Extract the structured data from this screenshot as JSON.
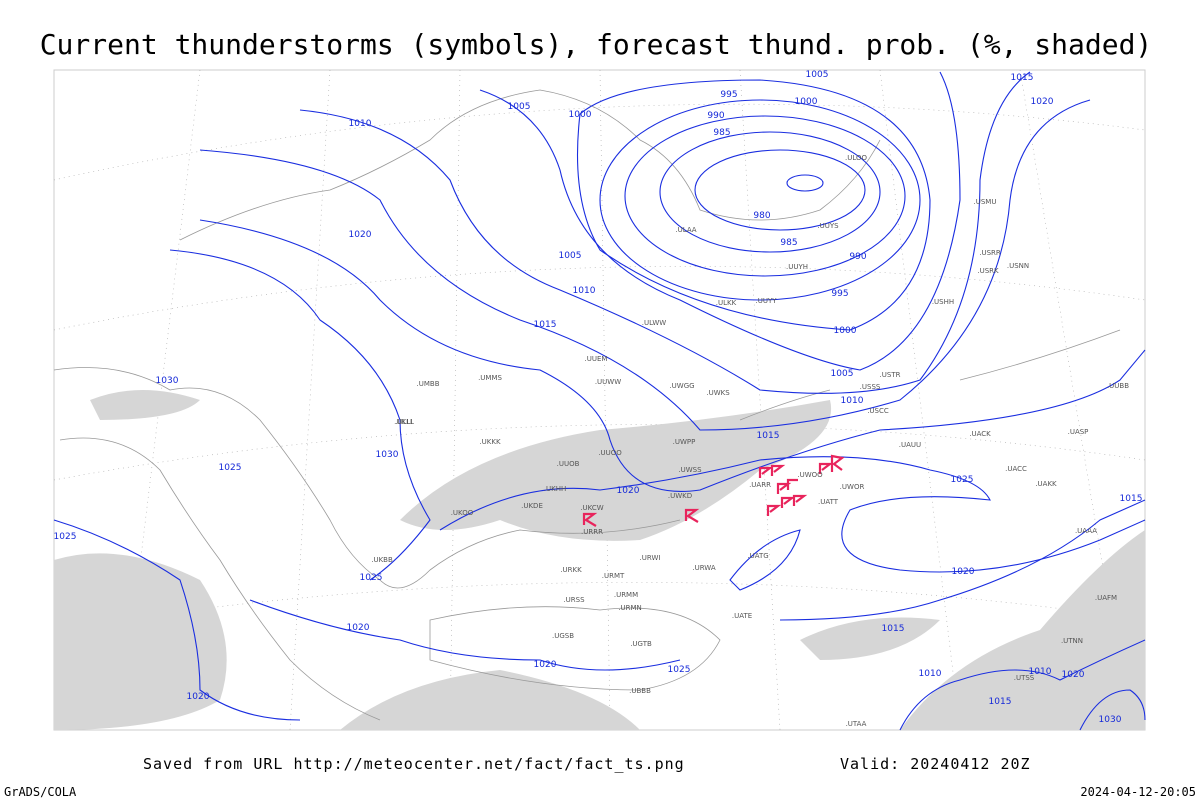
{
  "title": "Current thunderstorms (symbols), forecast thund. prob. (%, shaded)",
  "footer": {
    "saved": "Saved from URL http://meteocenter.net/fact/fact_ts.png",
    "valid": "Valid: 20240412 20Z",
    "credit": "GrADS/COLA",
    "timestamp": "2024-04-12-20:05"
  },
  "isobar_labels": [
    "1005",
    "995",
    "1005",
    "1015",
    "1000",
    "990",
    "1000",
    "1020",
    "1010",
    "985",
    "980",
    "985",
    "990",
    "995",
    "1000",
    "1005",
    "1010",
    "1015",
    "1020",
    "1005",
    "1010",
    "1015",
    "1030",
    "1030",
    "1025",
    "1020",
    "1025",
    "1015",
    "1025",
    "1025",
    "1020",
    "1015",
    "1020",
    "1020",
    "1025",
    "1020",
    "1010",
    "1010",
    "1020",
    "1015",
    "1030"
  ],
  "station_labels": [
    ".UUYY",
    ".UUYH",
    ".UUYS",
    ".ULKK",
    ".ULWW",
    ".UUEM",
    ".UUWW",
    ".UWGG",
    ".UWKS",
    ".UWPP",
    ".UWSS",
    ".UWKD",
    ".UUOO",
    ".UUOB",
    ".UKHH",
    ".UKDE",
    ".UKCW",
    ".URRR",
    ".URWI",
    ".URWA",
    ".URMT",
    ".URMM",
    ".URMN",
    ".URKK",
    ".URSS",
    ".UGSB",
    ".UGTB",
    ".UBBB",
    ".UATG",
    ".UATE",
    ".UATT",
    ".UARR",
    ".UWOO",
    ".UWOR",
    ".UACC",
    ".UAKK",
    ".UASP",
    ".USTR",
    ".USCC",
    ".USSS",
    ".USRR",
    ".USRK",
    ".USNN",
    ".USHH",
    ".USMU",
    ".ULOO",
    ".UUBB",
    ".ULLI",
    ".UMMS",
    ".UMBB",
    ".UKLL",
    ".UKKK",
    ".UKBB",
    ".UKOO",
    ".ULAA",
    ".UAFM",
    ".UAAA",
    ".UTAA",
    ".UTSS",
    ".UTNN",
    ".UAUU",
    ".UACK"
  ]
}
